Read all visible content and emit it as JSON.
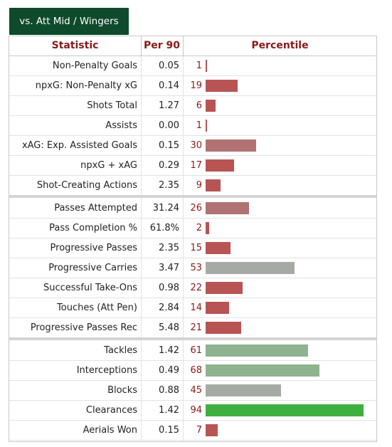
{
  "tab_label": "vs. Att Mid / Wingers",
  "headers": {
    "statistic": "Statistic",
    "per90": "Per 90",
    "percentile": "Percentile"
  },
  "colors": {
    "low": "#b85454",
    "mid_low": "#b07272",
    "mid": "#a6aaa5",
    "mid_high": "#8fb38f",
    "high": "#3fb03f"
  },
  "groups": [
    [
      {
        "stat": "Non-Penalty Goals",
        "per90": "0.05",
        "percentile": 1
      },
      {
        "stat": "npxG: Non-Penalty xG",
        "per90": "0.14",
        "percentile": 19
      },
      {
        "stat": "Shots Total",
        "per90": "1.27",
        "percentile": 6
      },
      {
        "stat": "Assists",
        "per90": "0.00",
        "percentile": 1
      },
      {
        "stat": "xAG: Exp. Assisted Goals",
        "per90": "0.15",
        "percentile": 30
      },
      {
        "stat": "npxG + xAG",
        "per90": "0.29",
        "percentile": 17
      },
      {
        "stat": "Shot-Creating Actions",
        "per90": "2.35",
        "percentile": 9
      }
    ],
    [
      {
        "stat": "Passes Attempted",
        "per90": "31.24",
        "percentile": 26
      },
      {
        "stat": "Pass Completion %",
        "per90": "61.8%",
        "percentile": 2
      },
      {
        "stat": "Progressive Passes",
        "per90": "2.35",
        "percentile": 15
      },
      {
        "stat": "Progressive Carries",
        "per90": "3.47",
        "percentile": 53
      },
      {
        "stat": "Successful Take-Ons",
        "per90": "0.98",
        "percentile": 22
      },
      {
        "stat": "Touches (Att Pen)",
        "per90": "2.84",
        "percentile": 14
      },
      {
        "stat": "Progressive Passes Rec",
        "per90": "5.48",
        "percentile": 21
      }
    ],
    [
      {
        "stat": "Tackles",
        "per90": "1.42",
        "percentile": 61
      },
      {
        "stat": "Interceptions",
        "per90": "0.49",
        "percentile": 68
      },
      {
        "stat": "Blocks",
        "per90": "0.88",
        "percentile": 45
      },
      {
        "stat": "Clearances",
        "per90": "1.42",
        "percentile": 94
      },
      {
        "stat": "Aerials Won",
        "per90": "0.15",
        "percentile": 7
      }
    ]
  ]
}
